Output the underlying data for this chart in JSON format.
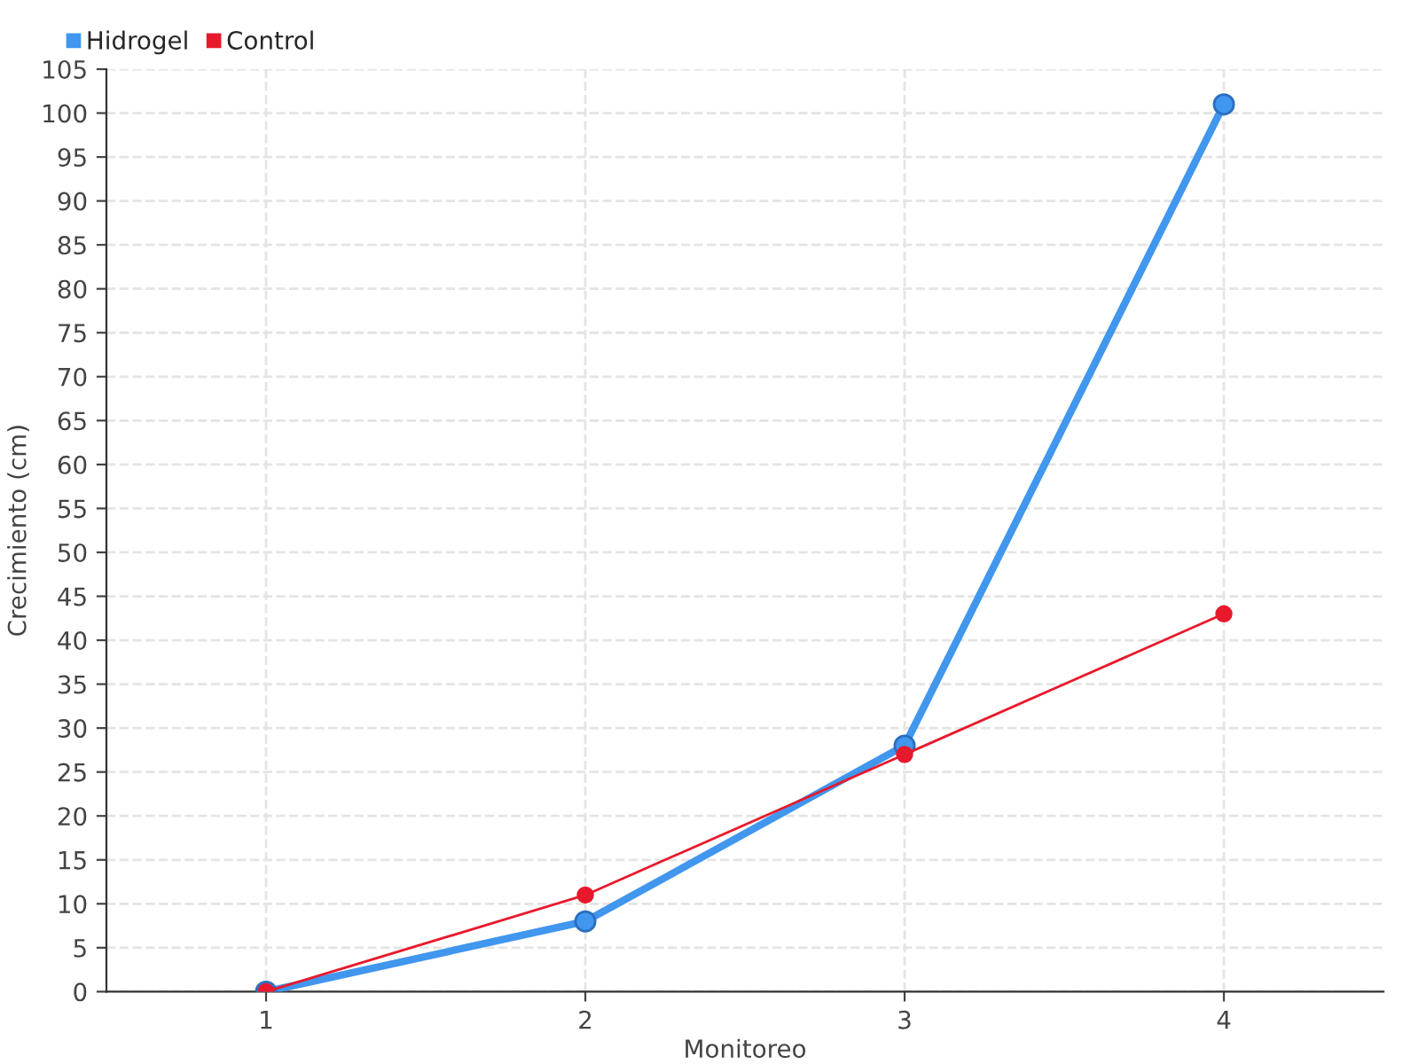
{
  "chart_data": {
    "type": "line",
    "xlabel": "Monitoreo",
    "ylabel": "Crecimiento (cm)",
    "categories": [
      "1",
      "2",
      "3",
      "4"
    ],
    "series": [
      {
        "name": "Hidrogel",
        "color": "#4196ee",
        "values": [
          0,
          8,
          28,
          101
        ]
      },
      {
        "name": "Control",
        "color": "#e8192c",
        "values": [
          0,
          11,
          27,
          43
        ]
      }
    ],
    "ylim": [
      0,
      105
    ],
    "yticks": [
      0,
      5,
      10,
      15,
      20,
      25,
      30,
      35,
      40,
      45,
      50,
      55,
      60,
      65,
      70,
      75,
      80,
      85,
      90,
      95,
      100,
      105
    ],
    "grid": true,
    "legend": "top left",
    "marker": "circle",
    "line_style": "solid"
  }
}
